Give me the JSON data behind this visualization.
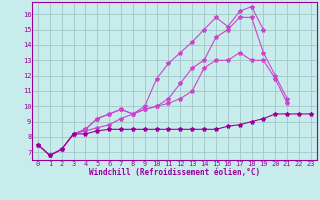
{
  "xlabel": "Windchill (Refroidissement éolien,°C)",
  "bg_color": "#c8ecec",
  "grid_color": "#a0c8c8",
  "line_color": "#990099",
  "line_color2": "#cc44cc",
  "xlim": [
    -0.5,
    23.5
  ],
  "ylim": [
    6.5,
    16.8
  ],
  "xticks": [
    0,
    1,
    2,
    3,
    4,
    5,
    6,
    7,
    8,
    9,
    10,
    11,
    12,
    13,
    14,
    15,
    16,
    17,
    18,
    19,
    20,
    21,
    22,
    23
  ],
  "yticks": [
    7,
    8,
    9,
    10,
    11,
    12,
    13,
    14,
    15,
    16
  ],
  "series": [
    [
      7.5,
      6.8,
      7.2,
      8.2,
      8.5,
      9.2,
      9.5,
      9.8,
      9.5,
      10.0,
      11.8,
      12.8,
      13.5,
      14.2,
      15.0,
      15.8,
      15.2,
      16.2,
      16.5,
      15.0,
      null,
      null,
      null,
      null
    ],
    [
      7.5,
      6.8,
      7.2,
      8.2,
      8.5,
      9.2,
      9.5,
      9.8,
      9.5,
      9.8,
      10.0,
      10.5,
      11.5,
      12.5,
      13.0,
      14.5,
      15.0,
      15.8,
      15.8,
      13.5,
      12.0,
      10.5,
      null,
      null
    ],
    [
      7.5,
      6.8,
      7.2,
      8.2,
      8.4,
      8.6,
      8.8,
      9.2,
      9.5,
      9.8,
      10.0,
      10.2,
      10.5,
      11.0,
      12.5,
      13.0,
      13.0,
      13.5,
      13.0,
      13.0,
      11.8,
      10.2,
      null,
      null
    ],
    [
      7.5,
      6.8,
      7.2,
      8.2,
      8.2,
      8.4,
      8.5,
      8.5,
      8.5,
      8.5,
      8.5,
      8.5,
      8.5,
      8.5,
      8.5,
      8.5,
      8.7,
      8.8,
      9.0,
      9.2,
      9.5,
      9.5,
      9.5,
      9.5
    ]
  ],
  "colors": [
    "#cc44cc",
    "#cc44cc",
    "#cc44cc",
    "#990099"
  ],
  "tick_fontsize": 5.0,
  "xlabel_fontsize": 5.5
}
